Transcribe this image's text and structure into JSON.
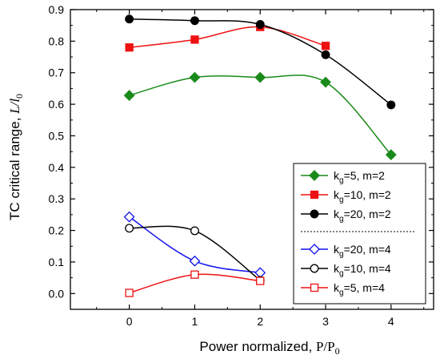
{
  "chart_data": {
    "type": "line",
    "xlabel": "Power normalized, ",
    "xlabel_var": "P/P",
    "xlabel_sub": "0",
    "ylabel": "TC critical range, ",
    "ylabel_var": "L/l",
    "ylabel_sub": "0",
    "xlim": [
      -0.9,
      4.65
    ],
    "ylim": [
      -0.05,
      0.9
    ],
    "xticks": [
      0,
      1,
      2,
      3,
      4
    ],
    "yticks": [
      0.0,
      0.1,
      0.2,
      0.3,
      0.4,
      0.5,
      0.6,
      0.7,
      0.8,
      0.9
    ],
    "ytick_labels": [
      "0.0",
      "0.1",
      "0.2",
      "0.3",
      "0.4",
      "0.5",
      "0.6",
      "0.7",
      "0.8",
      "0.9"
    ],
    "legend_position": "bottom-right",
    "series": [
      {
        "name": "k",
        "sub": "g",
        "suffix": "=5, m=2",
        "color": "#1a8a1a",
        "marker": "diamond-filled",
        "x": [
          0,
          1,
          2,
          3,
          4
        ],
        "values": [
          0.628,
          0.685,
          0.685,
          0.67,
          0.44
        ]
      },
      {
        "name": "k",
        "sub": "g",
        "suffix": "=10, m=2",
        "color": "#ee1111",
        "marker": "square-filled",
        "x": [
          0,
          1,
          2,
          3
        ],
        "values": [
          0.78,
          0.805,
          0.845,
          0.785
        ]
      },
      {
        "name": "k",
        "sub": "g",
        "suffix": "=20, m=2",
        "color": "#000000",
        "marker": "circle-filled",
        "x": [
          0,
          1,
          2,
          3,
          4
        ],
        "values": [
          0.87,
          0.865,
          0.853,
          0.757,
          0.598
        ]
      },
      {
        "name": "k",
        "sub": "g",
        "suffix": "=20, m=4",
        "color": "#1111ee",
        "marker": "diamond-open",
        "x": [
          0,
          1,
          2
        ],
        "values": [
          0.243,
          0.103,
          0.066
        ]
      },
      {
        "name": "k",
        "sub": "g",
        "suffix": "=10, m=4",
        "color": "#000000",
        "marker": "circle-open",
        "x": [
          0,
          1,
          2
        ],
        "values": [
          0.207,
          0.199,
          0.042
        ]
      },
      {
        "name": "k",
        "sub": "g",
        "suffix": "=5, m=4",
        "color": "#ee1111",
        "marker": "square-open",
        "x": [
          0,
          1,
          2
        ],
        "values": [
          0.002,
          0.06,
          0.04
        ]
      }
    ]
  }
}
